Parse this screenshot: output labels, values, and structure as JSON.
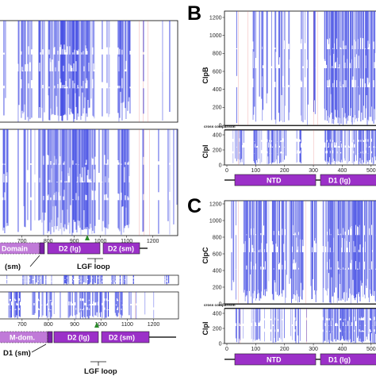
{
  "chart_data": [
    {
      "panel": "A",
      "type": "heatmap",
      "x_range": [
        600,
        1300
      ],
      "xtick_labels": [
        "700",
        "800",
        "900",
        "1000",
        "1100",
        "1200"
      ],
      "domains_top": [
        "Domain",
        "D2 (lg)",
        "D2 (sm)"
      ],
      "annotations_top": [
        "(sm)",
        "LGF loop"
      ],
      "domains_bottom": [
        "M-dom.",
        "D2 (lg)",
        "D2 (sm)"
      ],
      "annotations_bottom": [
        "D1 (sm)",
        "LGF loop"
      ],
      "colors": {
        "conservation": "#2a35e0",
        "variance": "#e06060",
        "domain_fill": "#9b30c8"
      }
    },
    {
      "panel": "B",
      "type": "heatmap",
      "row_labels": [
        "ClpB",
        "ClpI"
      ],
      "cross_label": "cross comparison",
      "yticks_top": [
        "0",
        "200",
        "400",
        "600",
        "800",
        "1000",
        "1200"
      ],
      "yticks_bottom": [
        "0",
        "200",
        "400"
      ],
      "xtick_labels": [
        "0",
        "100",
        "200",
        "300",
        "400",
        "500"
      ],
      "domains": [
        "NTD",
        "D1 (lg)"
      ],
      "colors": {
        "conservation": "#2a35e0",
        "variance": "#e06060",
        "domain_fill": "#9b30c8"
      }
    },
    {
      "panel": "C",
      "type": "heatmap",
      "row_labels": [
        "ClpC",
        "ClpI"
      ],
      "cross_label": "cross comparison",
      "yticks_top": [
        "0",
        "200",
        "400",
        "600",
        "800",
        "1000",
        "1200"
      ],
      "yticks_bottom": [
        "0",
        "200",
        "400"
      ],
      "xtick_labels": [
        "0",
        "100",
        "200",
        "300",
        "400",
        "500"
      ],
      "domains": [
        "NTD",
        "D1 (lg)"
      ],
      "colors": {
        "conservation": "#2a35e0",
        "variance": "#e06060",
        "domain_fill": "#9b30c8"
      }
    }
  ],
  "panel_labels": {
    "b": "B",
    "c": "C"
  }
}
